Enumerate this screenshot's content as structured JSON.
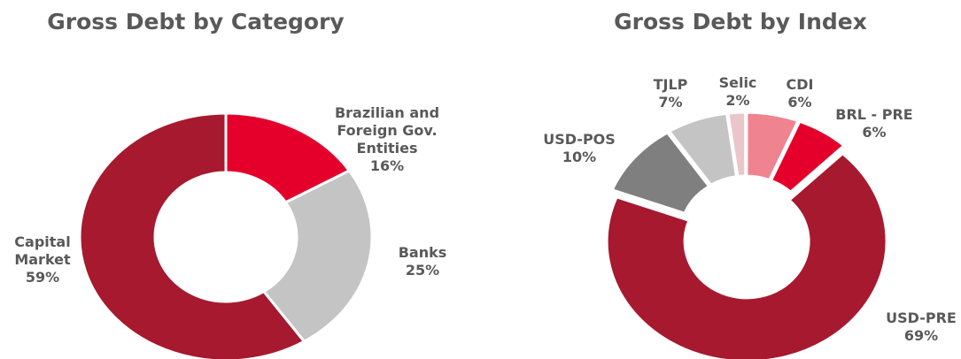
{
  "chart_data": [
    {
      "type": "donut",
      "title": "Gross Debt by Category",
      "categories": [
        "Brazilian and Foreign Gov. Entities",
        "Banks",
        "Capital Market"
      ],
      "values": [
        16,
        25,
        59
      ],
      "value_labels": [
        "16%",
        "25%",
        "59%"
      ],
      "colors": [
        "#e4002b",
        "#c4c4c4",
        "#a6192e"
      ]
    },
    {
      "type": "donut",
      "title": "Gross Debt by Index",
      "categories": [
        "CDI",
        "BRL - PRE",
        "USD-PRE",
        "USD-POS",
        "TJLP",
        "Selic"
      ],
      "values": [
        6,
        6,
        69,
        10,
        7,
        2
      ],
      "value_labels": [
        "6%",
        "6%",
        "69%",
        "10%",
        "7%",
        "2%"
      ],
      "colors": [
        "#f08390",
        "#e4002b",
        "#a6192e",
        "#7f7f7f",
        "#c4c4c4",
        "#eac6c9"
      ]
    }
  ]
}
